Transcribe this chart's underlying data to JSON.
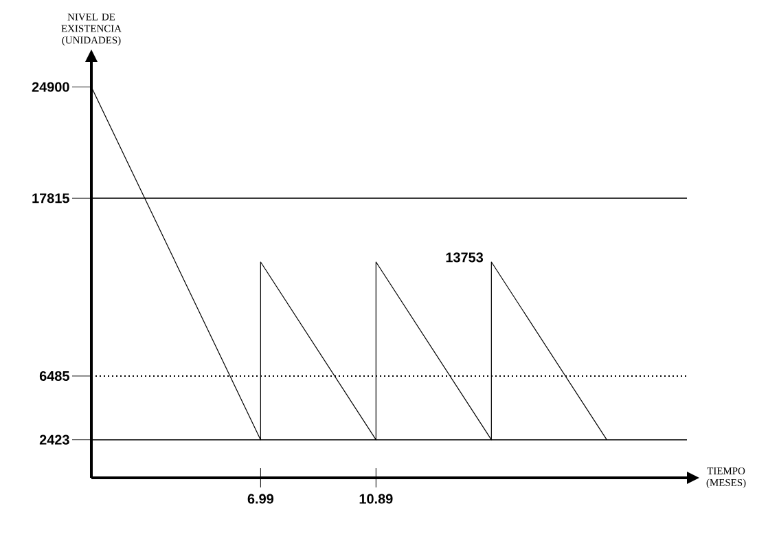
{
  "chart_data": {
    "type": "line",
    "xlabel": "TIEMPO (MESES)",
    "ylabel": "NIVEL DE EXISTENCIA (UNIDADES)",
    "x": [
      1.27,
      6.99,
      6.99,
      10.89,
      10.89,
      14.79,
      14.79,
      18.69
    ],
    "values": [
      24900,
      2423,
      13753,
      2423,
      13753,
      2423,
      13753,
      2423
    ],
    "color": "#000000",
    "line_style": "solid",
    "xlim": [
      1.27,
      21.4
    ],
    "ylim": [
      0,
      26500
    ],
    "xticks": [
      6.99,
      10.89
    ],
    "yticks": [
      2423,
      6485,
      17815,
      24900
    ],
    "ref_lines": [
      {
        "axis": "y",
        "value": 17815,
        "line_style": "solid"
      },
      {
        "axis": "y",
        "value": 6485,
        "line_style": "dotted"
      },
      {
        "axis": "y",
        "value": 2423,
        "line_style": "solid"
      }
    ],
    "annotations": [
      {
        "text": "13753",
        "x": 14.79,
        "y": 13753
      }
    ]
  }
}
